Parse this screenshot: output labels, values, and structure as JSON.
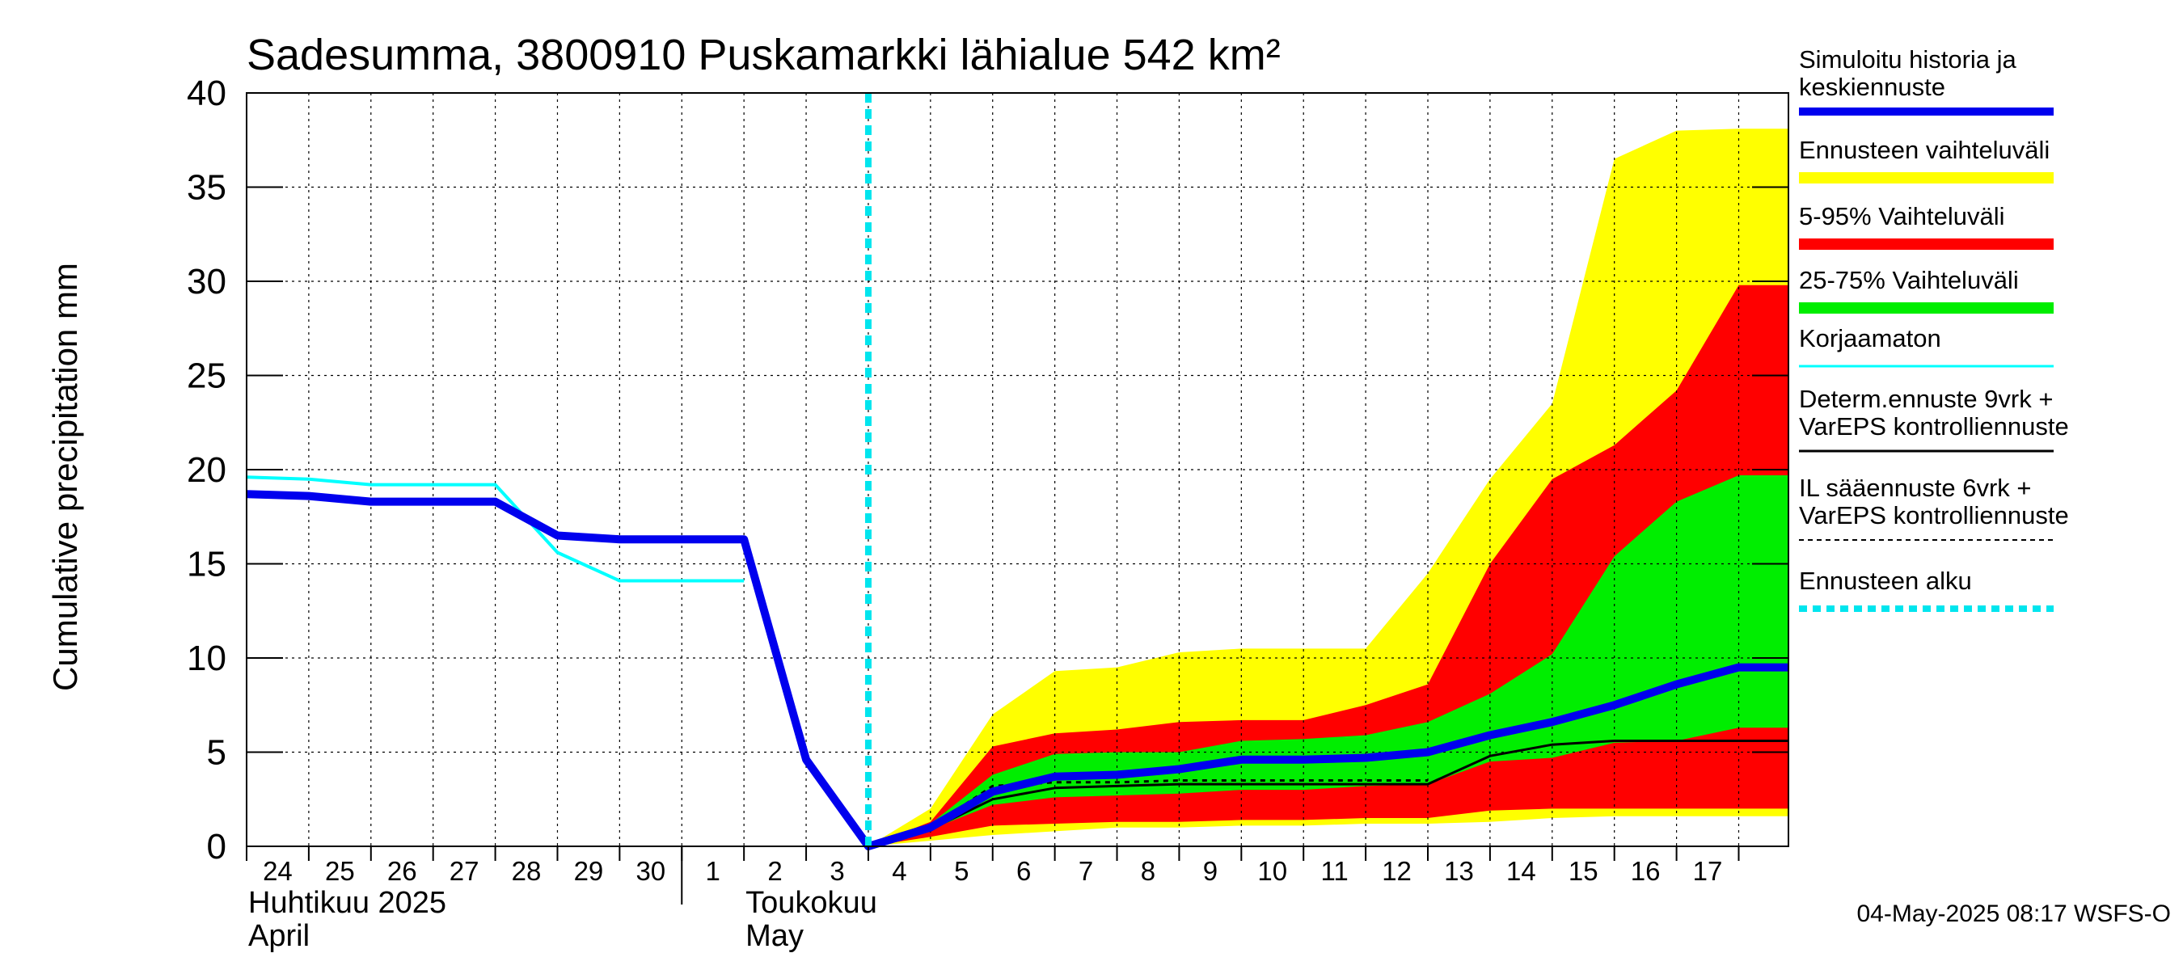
{
  "chart_data": {
    "type": "area",
    "title": "Sadesumma, 3800910 Puskamarkki lähialue 542 km²",
    "ylabel": "Cumulative precipitation   mm",
    "ylim": [
      0,
      40
    ],
    "yticks": [
      0,
      5,
      10,
      15,
      20,
      25,
      30,
      35,
      40
    ],
    "x_start_date": "2025-04-24",
    "x_day_range": [
      0,
      24.8
    ],
    "x_tick_labels": [
      "24",
      "25",
      "26",
      "27",
      "28",
      "29",
      "30",
      "1",
      "2",
      "3",
      "4",
      "5",
      "6",
      "7",
      "8",
      "9",
      "10",
      "11",
      "12",
      "13",
      "14",
      "15",
      "16",
      "17"
    ],
    "month_labels": [
      {
        "line1": "Huhtikuu  2025",
        "line2": "April",
        "day": 0
      },
      {
        "line1": "Toukokuu",
        "line2": "May",
        "day": 8
      }
    ],
    "forecast_start_day": 10.0,
    "grid": true,
    "legend_position": "right",
    "series": [
      {
        "name": "Ennusteen vaihteluväli",
        "kind": "band",
        "color": "#ffff00",
        "x": [
          10,
          11,
          12,
          13,
          14,
          15,
          16,
          17,
          18,
          19,
          20,
          21,
          22,
          23,
          24,
          24.8
        ],
        "lower": [
          0,
          0.3,
          0.6,
          0.8,
          1.0,
          1.0,
          1.1,
          1.1,
          1.2,
          1.2,
          1.3,
          1.5,
          1.6,
          1.6,
          1.6,
          1.6
        ],
        "upper": [
          0,
          2.0,
          7.0,
          9.3,
          9.5,
          10.3,
          10.5,
          10.5,
          10.5,
          14.5,
          19.5,
          23.5,
          36.5,
          38.0,
          38.1,
          38.1
        ]
      },
      {
        "name": "5-95% Vaihteluväli",
        "kind": "band",
        "color": "#ff0000",
        "x": [
          10,
          11,
          12,
          13,
          14,
          15,
          16,
          17,
          18,
          19,
          20,
          21,
          22,
          23,
          24,
          24.8
        ],
        "lower": [
          0,
          0.5,
          1.1,
          1.2,
          1.3,
          1.3,
          1.4,
          1.4,
          1.5,
          1.5,
          1.9,
          2.0,
          2.0,
          2.0,
          2.0,
          2.0
        ],
        "upper": [
          0,
          1.3,
          5.3,
          6.0,
          6.2,
          6.6,
          6.7,
          6.7,
          7.5,
          8.6,
          15.0,
          19.5,
          21.3,
          24.2,
          29.8,
          29.8
        ]
      },
      {
        "name": "25-75% Vaihteluväli",
        "kind": "band",
        "color": "#00ee00",
        "x": [
          10,
          11,
          12,
          13,
          14,
          15,
          16,
          17,
          18,
          19,
          20,
          21,
          22,
          23,
          24,
          24.8
        ],
        "lower": [
          0,
          0.9,
          2.2,
          2.6,
          2.7,
          2.8,
          3.0,
          3.0,
          3.2,
          3.3,
          4.5,
          4.7,
          5.5,
          5.6,
          6.3,
          6.3
        ],
        "upper": [
          0,
          1.2,
          3.8,
          4.9,
          5.0,
          5.0,
          5.6,
          5.7,
          5.9,
          6.6,
          8.1,
          10.2,
          15.4,
          18.3,
          19.7,
          19.7
        ]
      },
      {
        "name": "Korjaamaton",
        "kind": "line",
        "color": "#00ffff",
        "x": [
          0,
          1,
          2,
          3,
          4,
          5,
          6,
          7,
          8
        ],
        "y": [
          19.6,
          19.5,
          19.2,
          19.2,
          19.2,
          15.6,
          14.1,
          14.1,
          14.1
        ]
      },
      {
        "name": "Determ.ennuste 9vrk + VarEPS kontrolliennuste",
        "kind": "line",
        "color": "#000000",
        "x": [
          10,
          11,
          12,
          13,
          14,
          15,
          16,
          17,
          18,
          19,
          20,
          21,
          22,
          23,
          24,
          24.8
        ],
        "y": [
          0,
          0.9,
          2.5,
          3.1,
          3.2,
          3.3,
          3.3,
          3.3,
          3.3,
          3.3,
          4.8,
          5.4,
          5.6,
          5.6,
          5.6,
          5.6
        ]
      },
      {
        "name": "IL sääennuste 6vrk + VarEPS kontrolliennuste",
        "kind": "line",
        "color": "#000000",
        "dashed": true,
        "x": [
          10,
          11,
          12,
          13,
          14,
          15,
          16,
          17,
          18,
          19
        ],
        "y": [
          0,
          1.0,
          3.2,
          3.4,
          3.4,
          3.5,
          3.5,
          3.5,
          3.5,
          3.5
        ]
      },
      {
        "name": "Simuloitu historia ja keskiennuste",
        "kind": "line",
        "color": "#0000ee",
        "x": [
          0,
          1,
          2,
          3,
          4,
          5,
          6,
          7,
          8,
          9,
          10,
          11,
          12,
          13,
          14,
          15,
          16,
          17,
          18,
          19,
          20,
          21,
          22,
          23,
          24,
          24.8
        ],
        "y": [
          18.7,
          18.6,
          18.3,
          18.3,
          18.3,
          16.5,
          16.3,
          16.3,
          16.3,
          4.6,
          0,
          1.0,
          2.9,
          3.7,
          3.8,
          4.1,
          4.6,
          4.6,
          4.7,
          5.0,
          5.9,
          6.6,
          7.5,
          8.6,
          9.5,
          9.5
        ]
      }
    ],
    "legend": [
      {
        "line1": "Simuloitu historia ja",
        "line2": "keskiennuste",
        "color": "#0000ee",
        "style": "thick"
      },
      {
        "line1": "Ennusteen vaihteluväli",
        "line2": "",
        "color": "#ffff00",
        "style": "band"
      },
      {
        "line1": "5-95% Vaihteluväli",
        "line2": "",
        "color": "#ff0000",
        "style": "band"
      },
      {
        "line1": "25-75% Vaihteluväli",
        "line2": "",
        "color": "#00ee00",
        "style": "band"
      },
      {
        "line1": "Korjaamaton",
        "line2": "",
        "color": "#00ffff",
        "style": "thin"
      },
      {
        "line1": "Determ.ennuste 9vrk  +",
        "line2": "VarEPS kontrolliennuste",
        "color": "#000000",
        "style": "thin"
      },
      {
        "line1": "IL sääennuste 6vrk  +",
        "line2": "  VarEPS kontrolliennuste",
        "color": "#000000",
        "style": "dashed"
      },
      {
        "line1": "Ennusteen alku",
        "line2": "",
        "color": "#00e5ee",
        "style": "dotted"
      }
    ],
    "footer": "04-May-2025 08:17 WSFS-O"
  }
}
